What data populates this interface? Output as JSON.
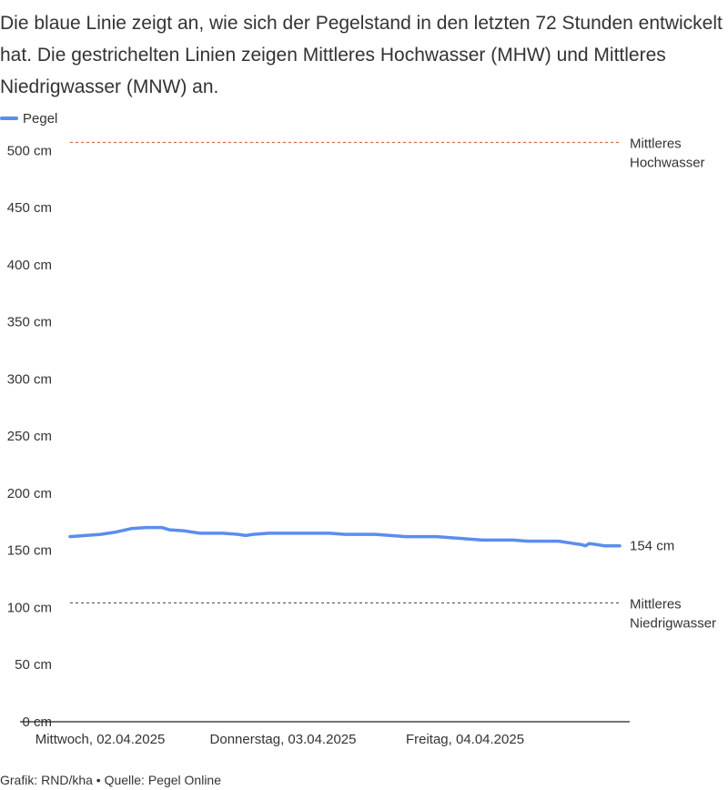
{
  "intro_text": "Die blaue Linie zeigt an, wie sich der Pegelstand in den letzten 72 Stunden entwickelt hat. Die gestrichelten Linien zeigen Mittleres Hochwasser (MHW) und Mittleres Niedrigwasser (MNW) an.",
  "source_text": "Grafik: RND/kha • Quelle: Pegel Online",
  "colors": {
    "series": "#5b8def",
    "mhw": "#e8663a",
    "mnw": "#555555",
    "axis": "#222222",
    "text": "#333333"
  },
  "chart_data": {
    "type": "line",
    "title": "",
    "xlabel": "",
    "ylabel": "",
    "ylim": [
      0,
      510
    ],
    "xlim_hours": [
      0,
      72
    ],
    "y_unit": "cm",
    "y_ticks": [
      {
        "value": 0,
        "label": "0 cm"
      },
      {
        "value": 50,
        "label": "50 cm"
      },
      {
        "value": 100,
        "label": "100 cm"
      },
      {
        "value": 150,
        "label": "150 cm"
      },
      {
        "value": 200,
        "label": "200 cm"
      },
      {
        "value": 250,
        "label": "250 cm"
      },
      {
        "value": 300,
        "label": "300 cm"
      },
      {
        "value": 350,
        "label": "350 cm"
      },
      {
        "value": 400,
        "label": "400 cm"
      },
      {
        "value": 450,
        "label": "450 cm"
      },
      {
        "value": 500,
        "label": "500 cm"
      }
    ],
    "x_ticks": [
      {
        "hour": 0,
        "label": "Mittwoch, 02.04.2025"
      },
      {
        "hour": 24,
        "label": "Donnerstag, 03.04.2025"
      },
      {
        "hour": 48,
        "label": "Freitag, 04.04.2025"
      }
    ],
    "legend": {
      "position": "top-left",
      "entries": [
        "Pegel"
      ]
    },
    "grid": false,
    "series": [
      {
        "name": "Pegel",
        "end_label": "154 cm",
        "points": [
          [
            0,
            162
          ],
          [
            2,
            163
          ],
          [
            4,
            164
          ],
          [
            6,
            166
          ],
          [
            8,
            169
          ],
          [
            10,
            170
          ],
          [
            12,
            170
          ],
          [
            13,
            168
          ],
          [
            15,
            167
          ],
          [
            17,
            165
          ],
          [
            20,
            165
          ],
          [
            22,
            164
          ],
          [
            23,
            163
          ],
          [
            24,
            164
          ],
          [
            26,
            165
          ],
          [
            30,
            165
          ],
          [
            34,
            165
          ],
          [
            36,
            164
          ],
          [
            40,
            164
          ],
          [
            42,
            163
          ],
          [
            44,
            162
          ],
          [
            48,
            162
          ],
          [
            50,
            161
          ],
          [
            52,
            160
          ],
          [
            54,
            159
          ],
          [
            58,
            159
          ],
          [
            60,
            158
          ],
          [
            64,
            158
          ],
          [
            66,
            156
          ],
          [
            67,
            155
          ],
          [
            67.5,
            154
          ],
          [
            68,
            156
          ],
          [
            69,
            155
          ],
          [
            70,
            154
          ],
          [
            72,
            154
          ]
        ]
      }
    ],
    "reference_lines": [
      {
        "value": 507,
        "label": [
          "Mittleres",
          "Hochwasser"
        ],
        "style": "dashed",
        "color_key": "mhw"
      },
      {
        "value": 104,
        "label": [
          "Mittleres",
          "Niedrigwasser"
        ],
        "style": "dashed",
        "color_key": "mnw"
      }
    ]
  }
}
